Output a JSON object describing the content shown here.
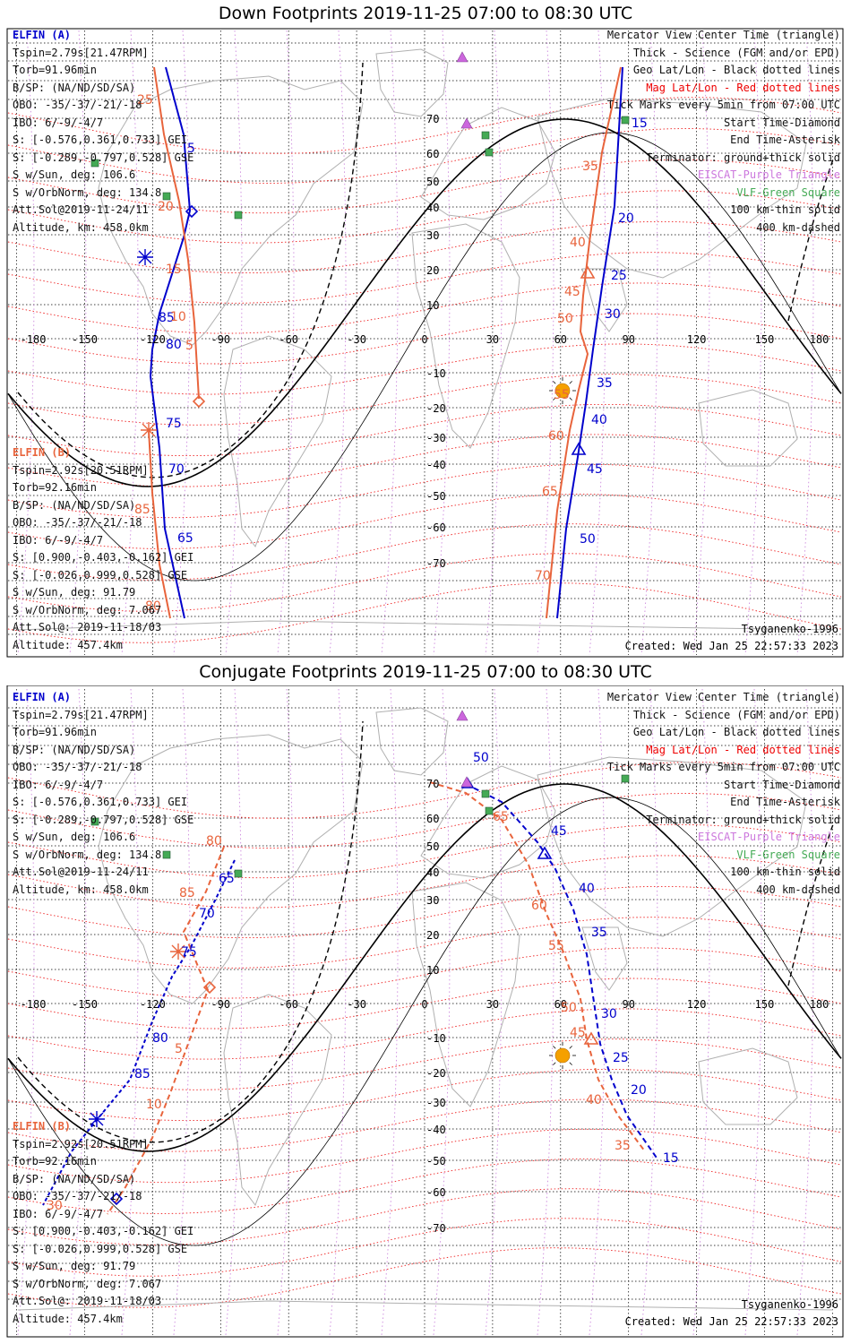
{
  "panels": [
    {
      "key": "down",
      "title": "Down Footprints 2019-11-25 07:00 to 08:30 UTC",
      "elfin_a": {
        "name": "ELFIN (A)",
        "lines": [
          "Tspin=2.79s[21.47RPM]",
          "Torb=91.96min",
          "B/SP: (NA/ND/SD/SA)",
          "OBO: -35/-37/-21/-18",
          "IBO: 6/-9/-4/7",
          "S: [-0.576,0.361,0.733] GEI",
          "S: [-0.289,-0.797,0.528] GSE",
          "S w/Sun, deg: 106.6",
          "S w/OrbNorm, deg: 134.8",
          "Att.Sol@2019-11-24/11",
          "Altitude, km: 458.0km"
        ]
      },
      "elfin_b": {
        "name": "ELFIN (B)",
        "lines": [
          "Tspin=2.92s[20.51RPM]",
          "Torb=92.16min",
          "B/SP: (NA/ND/SD/SA)",
          "OBO: -35/-37/-21/-18",
          "IBO: 6/-9/-4/7",
          "S: [0.900,-0.403,-0.162] GEI",
          "S: [-0.026,0.999,0.528] GSE",
          "S w/Sun, deg: 91.79",
          "S w/OrbNorm, deg: 7.067",
          "Att.Sol@: 2019-11-18/03",
          "Altitude: 457.4km"
        ]
      },
      "model": "Tsyganenko-1996",
      "created": "Created: Wed Jan 25 22:57:33 2023",
      "a_labels": [
        [
          "5",
          209,
          140
        ],
        [
          "20",
          690,
          218
        ],
        [
          "25",
          682,
          282
        ],
        [
          "30",
          675,
          325
        ],
        [
          "35",
          666,
          402
        ],
        [
          "40",
          660,
          443
        ],
        [
          "45",
          655,
          498
        ],
        [
          "50",
          647,
          576
        ],
        [
          "85",
          177,
          329
        ],
        [
          "80",
          185,
          359
        ],
        [
          "75",
          185,
          447
        ],
        [
          "70",
          188,
          498
        ],
        [
          "65",
          198,
          575
        ],
        [
          "15",
          705,
          112
        ]
      ],
      "b_labels": [
        [
          "25",
          153,
          86
        ],
        [
          "20",
          176,
          205
        ],
        [
          "15",
          185,
          275
        ],
        [
          "10",
          190,
          328
        ],
        [
          "5",
          207,
          360
        ],
        [
          "35",
          650,
          160
        ],
        [
          "40",
          636,
          245
        ],
        [
          "45",
          630,
          300
        ],
        [
          "50",
          622,
          330
        ],
        [
          "55",
          618,
          415
        ],
        [
          "60",
          612,
          461
        ],
        [
          "65",
          605,
          523
        ],
        [
          "70",
          597,
          617
        ],
        [
          "85",
          150,
          543
        ],
        [
          "80",
          162,
          651
        ]
      ]
    },
    {
      "key": "conj",
      "title": "Conjugate Footprints 2019-11-25 07:00 to 08:30 UTC",
      "elfin_a": {
        "name": "ELFIN (A)",
        "lines": [
          "Tspin=2.79s[21.47RPM]",
          "Torb=91.96min",
          "B/SP: (NA/ND/SD/SA)",
          "OBO: -35/-37/-21/-18",
          "IBO: 6/-9/-4/7",
          "S: [-0.576,0.361,0.733] GEI",
          "S: [-0.289,-0.797,0.528] GSE",
          "S w/Sun, deg: 106.6",
          "S w/OrbNorm, deg: 134.8",
          "Att.Sol@2019-11-24/11",
          "Altitude, km: 458.0km"
        ]
      },
      "elfin_b": {
        "name": "ELFIN (B)",
        "lines": [
          "Tspin=2.92s[20.51RPM]",
          "Torb=92.16min",
          "B/SP: (NA/ND/SD/SA)",
          "OBO: -35/-37/-21/-18",
          "IBO: 6/-9/-4/7",
          "S: [0.900,-0.403,-0.162] GEI",
          "S: [-0.026,0.999,0.528] GSE",
          "S w/Sun, deg: 91.79",
          "S w/OrbNorm, deg: 7.067",
          "Att.Sol@: 2019-11-18/03",
          "Altitude: 457.4km"
        ]
      },
      "model": "Tsyganenko-1996",
      "created": "Created: Wed Jan 25 22:57:33 2023",
      "a_labels": [
        [
          "50",
          528,
          85
        ],
        [
          "45",
          615,
          167
        ],
        [
          "40",
          646,
          231
        ],
        [
          "35",
          660,
          280
        ],
        [
          "30",
          671,
          371
        ],
        [
          "25",
          684,
          420
        ],
        [
          "20",
          704,
          456
        ],
        [
          "15",
          740,
          532
        ],
        [
          "65",
          244,
          220
        ],
        [
          "70",
          222,
          259
        ],
        [
          "75",
          202,
          302
        ],
        [
          "80",
          170,
          398
        ],
        [
          "85",
          150,
          438
        ]
      ],
      "b_labels": [
        [
          "80",
          230,
          178
        ],
        [
          "85",
          200,
          236
        ],
        [
          "65",
          550,
          151
        ],
        [
          "60",
          593,
          250
        ],
        [
          "55",
          612,
          295
        ],
        [
          "50",
          626,
          364
        ],
        [
          "45",
          636,
          392
        ],
        [
          "40",
          654,
          467
        ],
        [
          "35",
          686,
          518
        ],
        [
          "5",
          195,
          410
        ],
        [
          "10",
          163,
          472
        ],
        [
          "30",
          52,
          585
        ]
      ]
    }
  ],
  "legend": [
    {
      "text": "Mercator View Center Time (triangle)",
      "color": "black"
    },
    {
      "text": "Thick - Science (FGM and/or EPD)",
      "color": "black"
    },
    {
      "text": "Geo Lat/Lon - Black dotted lines",
      "color": "black"
    },
    {
      "text": "Mag Lat/Lon - Red dotted lines",
      "color": "red"
    },
    {
      "text": "Tick Marks every 5min from 07:00 UTC",
      "color": "black"
    },
    {
      "text": "Start Time-Diamond",
      "color": "black"
    },
    {
      "text": "End Time-Asterisk",
      "color": "black"
    },
    {
      "text": "Terminator: ground+thick solid",
      "color": "black"
    },
    {
      "text": "EISCAT-Purple Triangle",
      "color": "violet"
    },
    {
      "text": "VLF-Green Square",
      "color": "green"
    },
    {
      "text": "100 km-thin solid",
      "color": "black"
    },
    {
      "text": "400 km-dashed",
      "color": "black"
    }
  ],
  "axes": {
    "lon_ticks": [
      "-180",
      "-150",
      "-120",
      "-90",
      "-60",
      "-30",
      "0",
      "30",
      "60",
      "90",
      "120",
      "150",
      "180"
    ],
    "lat_ticks": [
      "70",
      "60",
      "50",
      "40",
      "30",
      "20",
      "10",
      "0",
      "-10",
      "-20",
      "-30",
      "-40",
      "-50",
      "-60",
      "-70"
    ]
  },
  "colors": {
    "elfin_a": "#0000cc",
    "elfin_b": "#e8643c",
    "mag_grid": "#ee2222",
    "geo_grid": "#000000",
    "eiscat": "#cc66dd",
    "vlf": "#44aa55",
    "sun": "#f5a000"
  }
}
